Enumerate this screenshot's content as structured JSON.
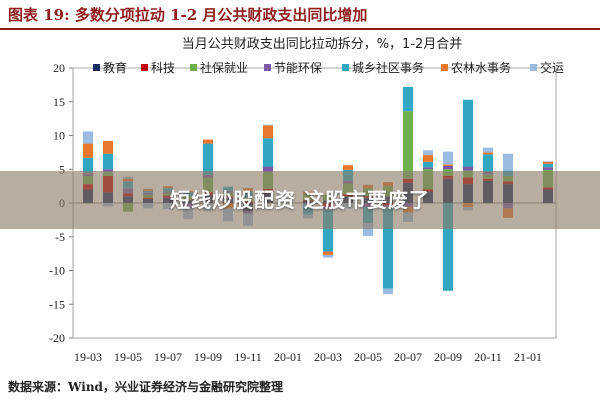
{
  "header": {
    "title": "图表 19: 多数分项拉动 1-2 月公共财政支出同比增加"
  },
  "source": "数据来源：Wind，兴业证券经济与金融研究院整理",
  "banner": {
    "text": "短线炒股配资 这股市要废了"
  },
  "colors": {
    "header_accent": "#8e1e1e",
    "banner_overlay": "#8c7a68"
  },
  "chart_data": {
    "type": "bar",
    "stacked": true,
    "title": "当月公共财政支出同比拉动拆分，%，1-2月合并",
    "xlabel": "",
    "ylabel": "",
    "ylim": [
      -20,
      20
    ],
    "y_ticks": [
      20,
      15,
      10,
      5,
      0,
      -5,
      -10,
      -15,
      -20
    ],
    "grid": false,
    "legend_position": "top",
    "x": [
      "19-03",
      "19-04",
      "19-05",
      "19-06",
      "19-07",
      "19-08",
      "19-09",
      "19-10",
      "19-11",
      "19-12",
      "20-01",
      "20-02",
      "20-03",
      "20-04",
      "20-05",
      "20-06",
      "20-07",
      "20-08",
      "20-09",
      "20-10",
      "20-11",
      "20-12",
      "21-01",
      "21-02"
    ],
    "x_tick_labels": [
      "19-03",
      "19-05",
      "19-07",
      "19-09",
      "19-11",
      "20-01",
      "20-03",
      "20-05",
      "20-07",
      "20-09",
      "20-11",
      "21-01"
    ],
    "series": [
      {
        "name": "教育",
        "color": "#1c2c5e",
        "values": [
          2.0,
          1.6,
          1.0,
          0.6,
          0.8,
          0.4,
          1.2,
          0.8,
          -1.2,
          1.5,
          null,
          0.3,
          0.4,
          1.0,
          0.8,
          1.0,
          3.0,
          1.7,
          3.6,
          2.8,
          3.3,
          2.8,
          null,
          2.0
        ]
      },
      {
        "name": "科技",
        "color": "#c00000",
        "values": [
          0.8,
          2.4,
          0.4,
          0.2,
          0.3,
          0.1,
          0.4,
          0.2,
          0.2,
          0.6,
          null,
          0.1,
          -0.4,
          0.3,
          0.2,
          -0.3,
          0.6,
          0.3,
          0.4,
          1.0,
          0.3,
          0.4,
          null,
          0.3
        ]
      },
      {
        "name": "社保就业",
        "color": "#6fae4c",
        "values": [
          1.2,
          0.6,
          -1.3,
          0.4,
          0.3,
          0.5,
          2.1,
          0.5,
          0.6,
          2.5,
          null,
          1.0,
          0.8,
          1.6,
          1.2,
          1.5,
          10.0,
          3.0,
          1.0,
          1.0,
          0.6,
          0.8,
          null,
          2.6
        ]
      },
      {
        "name": "节能环保",
        "color": "#7a5aa6",
        "values": [
          0.4,
          0.4,
          0.8,
          0.3,
          0.2,
          -0.8,
          0.5,
          0.3,
          -0.4,
          0.8,
          null,
          -0.2,
          -0.6,
          0.4,
          -0.6,
          -0.4,
          -0.6,
          0.3,
          0.5,
          0.6,
          0.4,
          -0.8,
          null,
          0.4
        ]
      },
      {
        "name": "城乡社区事务",
        "color": "#31a6c0",
        "values": [
          2.3,
          2.3,
          1.0,
          0.3,
          0.6,
          0.6,
          4.6,
          0.6,
          1.0,
          4.2,
          null,
          -1.5,
          -6.2,
          1.6,
          -2.4,
          -12.0,
          3.6,
          0.8,
          -13.0,
          9.9,
          2.6,
          0.8,
          null,
          0.5
        ]
      },
      {
        "name": "农林水事务",
        "color": "#e8772e",
        "values": [
          2.1,
          1.9,
          0.4,
          0.3,
          0.3,
          0.2,
          0.6,
          -0.8,
          0.4,
          1.9,
          null,
          0.3,
          -0.5,
          0.7,
          0.5,
          0.6,
          -0.8,
          1.0,
          0.2,
          -0.6,
          0.3,
          -1.4,
          null,
          0.3
        ]
      },
      {
        "name": "交运",
        "color": "#9bbbe0",
        "values": [
          1.8,
          -0.5,
          0.3,
          -0.8,
          -0.9,
          -1.6,
          -1.2,
          -1.9,
          -1.8,
          0.1,
          null,
          -0.6,
          -0.4,
          -0.8,
          -1.9,
          -0.8,
          -1.4,
          0.7,
          1.9,
          -0.5,
          0.7,
          2.5,
          null,
          0.1
        ]
      }
    ]
  }
}
